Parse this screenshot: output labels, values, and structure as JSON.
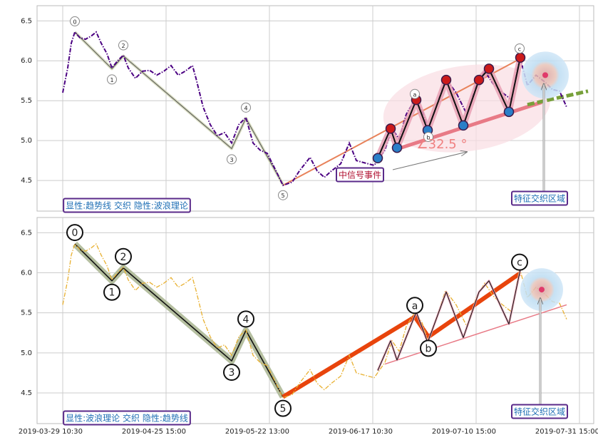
{
  "chart_data": [
    {
      "type": "line",
      "legend_label": "显性:趋势线 交织 隐性:波浪理论",
      "annotations": [
        "中信号事件",
        "∠32.5 °",
        "特征交织区域"
      ],
      "xlim": [
        -36,
        745
      ],
      "xticks": [
        0,
        145,
        290,
        435,
        580,
        725
      ],
      "ylim": [
        4.117,
        6.69
      ],
      "yticks": [
        4.5,
        {
          "value": 5,
          "label": "5.0"
        },
        5.5,
        {
          "value": 6,
          "label": "6.0"
        },
        6.5
      ],
      "grid": true,
      "series": [
        {
          "color": "#4b0082",
          "x": [
            0,
            7,
            12,
            17,
            24,
            32,
            40,
            47,
            54,
            62,
            69,
            77,
            85,
            92,
            102,
            112,
            122,
            132,
            142,
            152,
            162,
            172,
            182,
            187,
            197,
            207,
            217,
            227,
            237,
            247,
            257,
            267,
            277,
            287,
            297,
            309,
            322,
            332,
            347,
            357,
            367,
            377,
            390,
            402,
            412,
            424,
            437,
            452,
            462,
            472,
            482,
            494,
            504,
            513,
            524,
            537,
            552,
            567,
            580,
            592,
            604,
            617,
            630,
            641,
            652,
            664,
            677,
            687,
            697,
            707
          ],
          "values": [
            5.6,
            5.91,
            6.22,
            6.36,
            6.29,
            6.27,
            6.31,
            6.36,
            6.22,
            6.09,
            5.91,
            6.0,
            6.07,
            5.91,
            5.78,
            5.87,
            5.88,
            5.82,
            5.87,
            5.94,
            5.82,
            5.87,
            5.94,
            5.78,
            5.42,
            5.2,
            5.06,
            5.1,
            4.97,
            5.2,
            5.29,
            4.97,
            4.88,
            4.84,
            4.66,
            4.44,
            4.48,
            4.62,
            4.79,
            4.62,
            4.54,
            4.62,
            4.71,
            4.97,
            4.75,
            4.72,
            4.69,
            4.88,
            5.15,
            5.02,
            5.33,
            5.51,
            5.38,
            5.15,
            5.42,
            5.78,
            5.6,
            5.33,
            5.69,
            5.87,
            5.71,
            5.6,
            5.51,
            6.06,
            5.69,
            5.82,
            5.73,
            5.64,
            5.62,
            5.42
          ]
        }
      ],
      "lines": [
        {
          "color": "#e8825a",
          "x": [
            309,
            647
          ],
          "y": [
            4.44,
            6.05
          ]
        },
        {
          "color": "#e87a86",
          "x": [
            464,
            672
          ],
          "y": [
            4.88,
            5.48
          ]
        },
        {
          "color": "#77a03a",
          "x": [
            652,
            737
          ],
          "y": [
            5.45,
            5.62
          ]
        }
      ],
      "zigzag": {
        "x": [
          442,
          460,
          469,
          496,
          512,
          538,
          562,
          584,
          598,
          626,
          642
        ],
        "y": [
          4.78,
          5.15,
          4.91,
          5.51,
          5.13,
          5.76,
          5.19,
          5.76,
          5.9,
          5.36,
          6.04
        ]
      },
      "waves": [
        {
          "label": "0",
          "x": 17,
          "y": 6.36
        },
        {
          "label": "1",
          "x": 69,
          "y": 5.9
        },
        {
          "label": "2",
          "x": 85,
          "y": 6.06
        },
        {
          "label": "3",
          "x": 237,
          "y": 4.9
        },
        {
          "label": "4",
          "x": 257,
          "y": 5.28
        },
        {
          "label": "5",
          "x": 309,
          "y": 4.45
        },
        {
          "label": "a",
          "x": 494,
          "y": 5.45
        },
        {
          "label": "b",
          "x": 513,
          "y": 5.18
        },
        {
          "label": "c",
          "x": 641,
          "y": 6.02
        }
      ],
      "focus": {
        "x": 677,
        "y": 5.82
      }
    },
    {
      "type": "line",
      "legend_label": "显性:波浪理论 交织 隐性:趋势线",
      "annotations": [
        "特征交织区域"
      ],
      "xlim": [
        -36,
        745
      ],
      "xticks": [
        {
          "value": 0,
          "label": "2019-03-29 10:30"
        },
        {
          "value": 145,
          "label": "2019-04-25 15:00"
        },
        {
          "value": 290,
          "label": "2019-05-22 13:00"
        },
        {
          "value": 435,
          "label": "2019-06-17 10:30"
        },
        {
          "value": 580,
          "label": "2019-07-10 15:00"
        },
        {
          "value": 725,
          "label": "2019-07-31 15:00"
        }
      ],
      "ylim": [
        4.117,
        6.69
      ],
      "yticks": [
        4.5,
        {
          "value": 5,
          "label": "5.0"
        },
        5.5,
        {
          "value": 6,
          "label": "6.0"
        },
        6.5
      ],
      "grid": true,
      "series": [
        {
          "color": "#e8b030",
          "x": [
            0,
            7,
            12,
            17,
            24,
            32,
            40,
            47,
            54,
            62,
            69,
            77,
            85,
            92,
            102,
            112,
            122,
            132,
            142,
            152,
            162,
            172,
            182,
            187,
            197,
            207,
            217,
            227,
            237,
            247,
            257,
            267,
            277,
            287,
            297,
            309,
            322,
            332,
            347,
            357,
            367,
            377,
            390,
            402,
            412,
            424,
            437,
            452,
            462,
            472,
            482,
            494,
            504,
            513,
            524,
            537,
            552,
            567,
            580,
            592,
            604,
            617,
            630,
            641,
            652,
            664,
            677,
            687,
            697,
            707
          ],
          "values": [
            5.6,
            5.91,
            6.22,
            6.36,
            6.29,
            6.27,
            6.31,
            6.36,
            6.22,
            6.09,
            5.91,
            6.0,
            6.07,
            5.91,
            5.78,
            5.87,
            5.88,
            5.82,
            5.87,
            5.94,
            5.82,
            5.87,
            5.94,
            5.78,
            5.42,
            5.2,
            5.06,
            5.1,
            4.97,
            5.2,
            5.29,
            4.97,
            4.88,
            4.84,
            4.66,
            4.44,
            4.48,
            4.62,
            4.79,
            4.62,
            4.54,
            4.62,
            4.71,
            4.97,
            4.75,
            4.72,
            4.69,
            4.88,
            5.15,
            5.02,
            5.33,
            5.51,
            5.38,
            5.15,
            5.42,
            5.78,
            5.6,
            5.33,
            5.69,
            5.87,
            5.71,
            5.6,
            5.51,
            6.06,
            5.69,
            5.82,
            5.73,
            5.64,
            5.62,
            5.42
          ]
        }
      ],
      "lines": [
        {
          "color": "#e87a86",
          "x": [
            452,
            707
          ],
          "y": [
            4.86,
            5.6
          ]
        }
      ],
      "zigzag": {
        "x": [
          442,
          460,
          469,
          496,
          512,
          538,
          562,
          584,
          598,
          626,
          642
        ],
        "y": [
          4.78,
          5.15,
          4.91,
          5.51,
          5.13,
          5.76,
          5.19,
          5.76,
          5.9,
          5.36,
          6.04
        ]
      },
      "waves": [
        {
          "label": "0",
          "x": 17,
          "y": 6.36
        },
        {
          "label": "1",
          "x": 69,
          "y": 5.9
        },
        {
          "label": "2",
          "x": 85,
          "y": 6.06
        },
        {
          "label": "3",
          "x": 237,
          "y": 4.9
        },
        {
          "label": "4",
          "x": 257,
          "y": 5.28
        },
        {
          "label": "5",
          "x": 309,
          "y": 4.45
        },
        {
          "label": "a",
          "x": 494,
          "y": 5.45
        },
        {
          "label": "b",
          "x": 513,
          "y": 5.2
        },
        {
          "label": "c",
          "x": 641,
          "y": 5.99
        }
      ],
      "focus": {
        "x": 672,
        "y": 5.79
      }
    }
  ]
}
